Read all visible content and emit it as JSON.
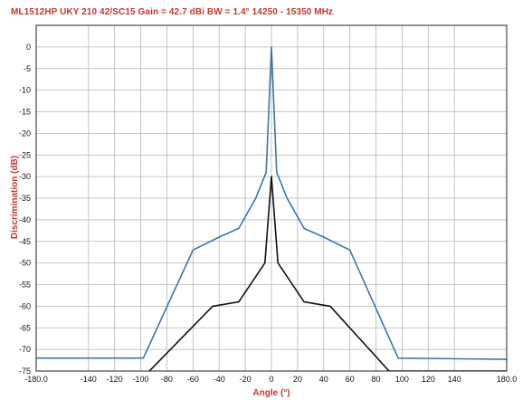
{
  "chart_data": {
    "type": "line",
    "title": "ML1512HP   UKY 210 42/SC15   Gain = 42.7 dBi   BW = 1.4°   14250 - 15350 MHz",
    "xlabel": "Angle (°)",
    "ylabel": "Discrimination (dB)",
    "xlim": [
      -180,
      180
    ],
    "ylim": [
      -75,
      5
    ],
    "grid": true,
    "colors": {
      "title": "#c0392b",
      "grid": "#b5b5b5",
      "frame": "#222222"
    },
    "x_ticks": [
      {
        "value": -180,
        "label": "-180.0"
      },
      {
        "value": -140,
        "label": "-140"
      },
      {
        "value": -120,
        "label": "-120"
      },
      {
        "value": -100,
        "label": "-100"
      },
      {
        "value": -80,
        "label": "-80"
      },
      {
        "value": -60,
        "label": "-60"
      },
      {
        "value": -40,
        "label": "-40"
      },
      {
        "value": -20,
        "label": "-20"
      },
      {
        "value": 0,
        "label": "0"
      },
      {
        "value": 20,
        "label": "20"
      },
      {
        "value": 40,
        "label": "40"
      },
      {
        "value": 60,
        "label": "60"
      },
      {
        "value": 80,
        "label": "80"
      },
      {
        "value": 100,
        "label": "100"
      },
      {
        "value": 120,
        "label": "120"
      },
      {
        "value": 140,
        "label": "140"
      },
      {
        "value": 180,
        "label": "180.0"
      }
    ],
    "y_ticks": [
      {
        "value": 0,
        "label": "0"
      },
      {
        "value": -5,
        "label": "-5"
      },
      {
        "value": -10,
        "label": "-10"
      },
      {
        "value": -15,
        "label": "-15"
      },
      {
        "value": -20,
        "label": "-20"
      },
      {
        "value": -25,
        "label": "-25"
      },
      {
        "value": -30,
        "label": "-30"
      },
      {
        "value": -35,
        "label": "-35"
      },
      {
        "value": -40,
        "label": "-40"
      },
      {
        "value": -45,
        "label": "-45"
      },
      {
        "value": -50,
        "label": "-50"
      },
      {
        "value": -55,
        "label": "-55"
      },
      {
        "value": -60,
        "label": "-60"
      },
      {
        "value": -65,
        "label": "-65"
      },
      {
        "value": -70,
        "label": "-70"
      },
      {
        "value": -75,
        "label": "-75"
      }
    ],
    "series": [
      {
        "color": "#3d74a8",
        "points": [
          [
            -180,
            -72
          ],
          [
            -98,
            -72
          ],
          [
            -60,
            -47
          ],
          [
            -40,
            -44
          ],
          [
            -25,
            -42
          ],
          [
            -12,
            -35
          ],
          [
            -4,
            -29
          ],
          [
            0,
            0
          ],
          [
            4,
            -29
          ],
          [
            12,
            -35
          ],
          [
            25,
            -42
          ],
          [
            40,
            -44
          ],
          [
            60,
            -47
          ],
          [
            97,
            -72
          ],
          [
            180,
            -72.3
          ]
        ]
      },
      {
        "color": "#111111",
        "points": [
          [
            -180,
            -75.5
          ],
          [
            -95,
            -75.5
          ],
          [
            -45,
            -60
          ],
          [
            -25,
            -59
          ],
          [
            -5,
            -50
          ],
          [
            0,
            -30
          ],
          [
            5,
            -50
          ],
          [
            25,
            -59
          ],
          [
            45,
            -60
          ],
          [
            90,
            -75
          ],
          [
            180,
            -75
          ]
        ]
      }
    ]
  }
}
